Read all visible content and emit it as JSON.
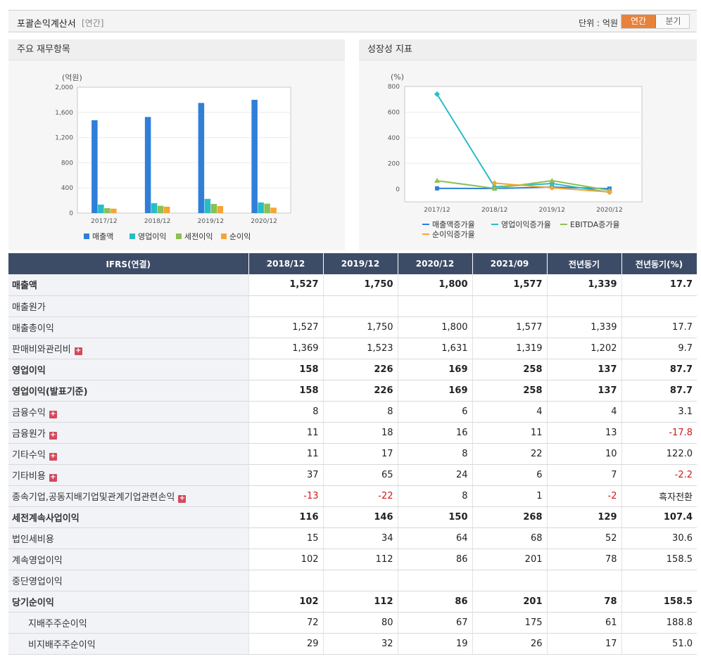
{
  "topbar": {
    "title": "포괄손익계산서",
    "period_tag": "[연간]",
    "unit": "단위 : 억원",
    "tab_annual": "연간",
    "tab_quarter": "분기"
  },
  "left_panel": {
    "title": "주요 재무항목",
    "unit_label": "(억원)"
  },
  "right_panel": {
    "title": "성장성 지표",
    "unit_label": "(%)"
  },
  "colors": {
    "sales": "#2f7fd8",
    "op": "#27bdc8",
    "pretax": "#8cc152",
    "net": "#f4a535",
    "header_bg": "#3d4c66",
    "accent": "#e8823a",
    "negative": "#d01818"
  },
  "chart_data": [
    {
      "type": "bar",
      "categories": [
        "2017/12",
        "2018/12",
        "2019/12",
        "2020/12"
      ],
      "series": [
        {
          "name": "매출액",
          "values": [
            1475,
            1527,
            1750,
            1800
          ]
        },
        {
          "name": "영업이익",
          "values": [
            135,
            158,
            226,
            169
          ]
        },
        {
          "name": "세전이익",
          "values": [
            80,
            116,
            146,
            150
          ]
        },
        {
          "name": "순이익",
          "values": [
            70,
            102,
            112,
            86
          ]
        }
      ],
      "ylabel": "(억원)",
      "ylim": [
        0,
        2000
      ],
      "yticks": [
        "0",
        "400",
        "800",
        "1,200",
        "1,600",
        "2,000"
      ],
      "grid": true,
      "legend": "bottom"
    },
    {
      "type": "line",
      "categories": [
        "2017/12",
        "2018/12",
        "2019/12",
        "2020/12"
      ],
      "series": [
        {
          "name": "매출액증가율",
          "values": [
            5,
            4,
            15,
            3
          ]
        },
        {
          "name": "영업이익증가율",
          "values": [
            740,
            17,
            43,
            -25
          ]
        },
        {
          "name": "EBITDA증가율",
          "values": [
            65,
            5,
            65,
            -10
          ]
        },
        {
          "name": "순이익증가율",
          "values": [
            null,
            46,
            10,
            -23
          ]
        }
      ],
      "ylabel": "(%)",
      "ylim": [
        -100,
        800
      ],
      "yticks": [
        "0",
        "200",
        "400",
        "600",
        "800"
      ],
      "grid": true,
      "legend": "bottom"
    }
  ],
  "table": {
    "headers": [
      "IFRS(연결)",
      "2018/12",
      "2019/12",
      "2020/12",
      "2021/09",
      "전년동기",
      "전년동기(%)"
    ],
    "rows": [
      {
        "label": "매출액",
        "vals": [
          "1,527",
          "1,750",
          "1,800",
          "1,577",
          "1,339",
          "17.7"
        ]
      },
      {
        "label": "매출원가",
        "vals": [
          "",
          "",
          "",
          "",
          "",
          ""
        ]
      },
      {
        "label": "매출총이익",
        "vals": [
          "1,527",
          "1,750",
          "1,800",
          "1,577",
          "1,339",
          "17.7"
        ]
      },
      {
        "label": "판매비와관리비",
        "vals": [
          "1,369",
          "1,523",
          "1,631",
          "1,319",
          "1,202",
          "9.7"
        ]
      },
      {
        "label": "영업이익",
        "vals": [
          "158",
          "226",
          "169",
          "258",
          "137",
          "87.7"
        ]
      },
      {
        "label": "영업이익(발표기준)",
        "vals": [
          "158",
          "226",
          "169",
          "258",
          "137",
          "87.7"
        ]
      },
      {
        "label": "금융수익",
        "vals": [
          "8",
          "8",
          "6",
          "4",
          "4",
          "3.1"
        ]
      },
      {
        "label": "금융원가",
        "vals": [
          "11",
          "18",
          "16",
          "11",
          "13",
          "-17.8"
        ]
      },
      {
        "label": "기타수익",
        "vals": [
          "11",
          "17",
          "8",
          "22",
          "10",
          "122.0"
        ]
      },
      {
        "label": "기타비용",
        "vals": [
          "37",
          "65",
          "24",
          "6",
          "7",
          "-2.2"
        ]
      },
      {
        "label": "종속기업,공동지배기업및관계기업관련손익",
        "vals": [
          "-13",
          "-22",
          "8",
          "1",
          "-2",
          "흑자전환"
        ]
      },
      {
        "label": "세전계속사업이익",
        "vals": [
          "116",
          "146",
          "150",
          "268",
          "129",
          "107.4"
        ]
      },
      {
        "label": "법인세비용",
        "vals": [
          "15",
          "34",
          "64",
          "68",
          "52",
          "30.6"
        ]
      },
      {
        "label": "계속영업이익",
        "vals": [
          "102",
          "112",
          "86",
          "201",
          "78",
          "158.5"
        ]
      },
      {
        "label": "중단영업이익",
        "vals": [
          "",
          "",
          "",
          "",
          "",
          ""
        ]
      },
      {
        "label": "당기순이익",
        "vals": [
          "102",
          "112",
          "86",
          "201",
          "78",
          "158.5"
        ]
      },
      {
        "label": "지배주주순이익",
        "vals": [
          "72",
          "80",
          "67",
          "175",
          "61",
          "188.8"
        ]
      },
      {
        "label": "비지배주주순이익",
        "vals": [
          "29",
          "32",
          "19",
          "26",
          "17",
          "51.0"
        ]
      }
    ]
  }
}
